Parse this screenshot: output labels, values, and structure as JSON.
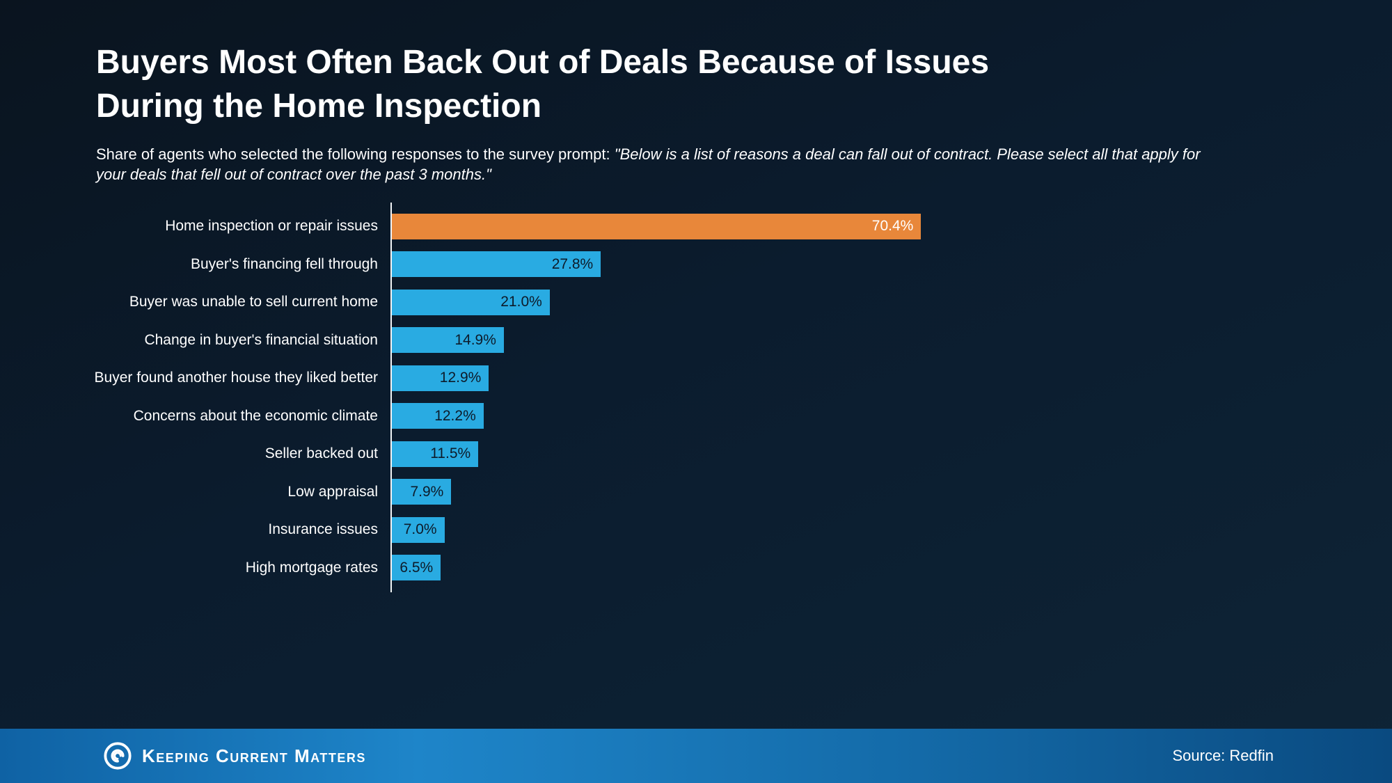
{
  "title": "Buyers Most Often Back Out of Deals Because of Issues During the Home Inspection",
  "subtitle": {
    "plain": "Share of agents who selected the following responses to the survey prompt: ",
    "quote": "\"Below is a list of reasons a deal can fall out of contract. Please select all that apply for your deals that fell out of contract over the past 3 months.\""
  },
  "chart_data": {
    "type": "bar",
    "orientation": "horizontal",
    "categories": [
      "Home inspection or repair issues",
      "Buyer's financing fell through",
      "Buyer was unable to sell current home",
      "Change in buyer's financial situation",
      "Buyer found another house they liked better",
      "Concerns about the economic climate",
      "Seller backed out",
      "Low appraisal",
      "Insurance issues",
      "High mortgage rates"
    ],
    "values": [
      70.4,
      27.8,
      21.0,
      14.9,
      12.9,
      12.2,
      11.5,
      7.9,
      7.0,
      6.5
    ],
    "value_labels": [
      "70.4%",
      "27.8%",
      "21.0%",
      "14.9%",
      "12.9%",
      "12.2%",
      "11.5%",
      "7.9%",
      "7.0%",
      "6.5%"
    ],
    "xlim": [
      0,
      74
    ],
    "highlight_index": 0,
    "colors": {
      "highlight": "#E8873A",
      "default": "#29ABE2"
    },
    "legend": "none",
    "grid": false
  },
  "footer": {
    "brand": "Keeping Current Matters",
    "brand_icon": "kcm-swirl-icon",
    "source": "Source: Redfin"
  }
}
